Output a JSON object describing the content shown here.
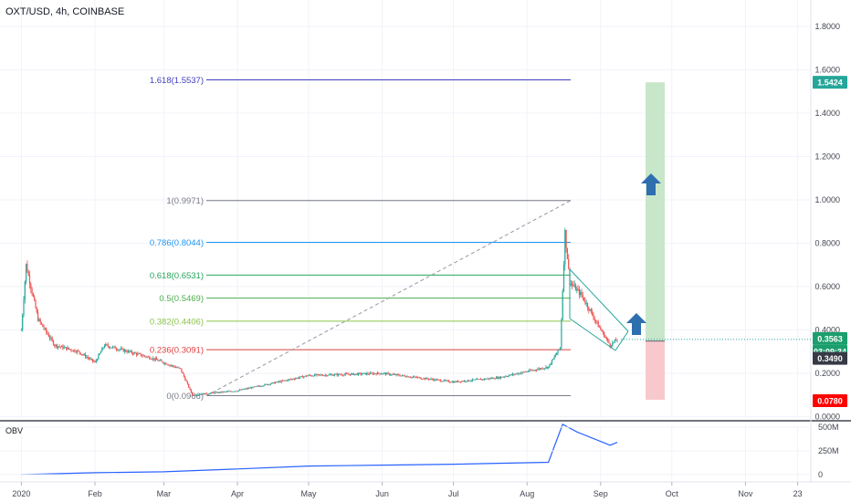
{
  "header": {
    "symbol_title": "OXT/USD, 4h, COINBASE"
  },
  "colors": {
    "up_candle": "#26a69a",
    "down_candle": "#ef5350",
    "obv_line": "#2962ff",
    "trend_line": "#26a69a",
    "target_zone": "#c8e6c9",
    "stop_zone": "#f8c9cc",
    "arrow": "#2e6fb0",
    "badge_green": "#26a69a",
    "badge_dark": "#363a45",
    "badge_red": "#ff0000",
    "badge_price": "#1c9e6e"
  },
  "icons": {
    "target_arrow": "arrow-up-icon",
    "breakout_arrow": "arrow-up-icon"
  },
  "price_axis": {
    "ticks": [
      "1.8000",
      "1.6000",
      "1.4000",
      "1.2000",
      "1.0000",
      "0.8000",
      "0.6000",
      "0.4000",
      "0.2000",
      "0.0000"
    ],
    "badges": {
      "target": "1.5424",
      "last_price": "0.3563",
      "countdown": "03:09:34",
      "entry": "0.3490",
      "stop": "0.0780"
    }
  },
  "obv_axis": {
    "title": "OBV",
    "ticks": [
      "500M",
      "250M",
      "0"
    ]
  },
  "time_axis": {
    "ticks": [
      "2020",
      "Feb",
      "Mar",
      "Apr",
      "May",
      "Jun",
      "Jul",
      "Aug",
      "Sep",
      "Oct",
      "Nov",
      "23"
    ]
  },
  "chart_data": {
    "type": "candlestick",
    "title": "OXT/USD, 4h, COINBASE",
    "ylim": [
      0,
      1.9
    ],
    "y_scale": "linear",
    "fibonacci": [
      {
        "label": "1.618(1.5537)",
        "level": 1.618,
        "price": 1.5537,
        "color": "#3f3fbf"
      },
      {
        "label": "1(0.9971)",
        "level": 1,
        "price": 0.9971,
        "color": "#787b86"
      },
      {
        "label": "0.786(0.8044)",
        "level": 0.786,
        "price": 0.8044,
        "color": "#2196f3"
      },
      {
        "label": "0.618(0.6531)",
        "level": 0.618,
        "price": 0.6531,
        "color": "#26a65b"
      },
      {
        "label": "0.5(0.5469)",
        "level": 0.5,
        "price": 0.5469,
        "color": "#4caf50"
      },
      {
        "label": "0.382(0.4406)",
        "level": 0.382,
        "price": 0.4406,
        "color": "#8bc34a"
      },
      {
        "label": "0.236(0.3091)",
        "level": 0.236,
        "price": 0.3091,
        "color": "#e04040"
      },
      {
        "label": "0(0.0966)",
        "level": 0,
        "price": 0.0966,
        "color": "#787b86"
      }
    ],
    "price_path_approx": [
      {
        "date": "2020-01-01",
        "price": 0.4
      },
      {
        "date": "2020-01-03",
        "price": 0.7
      },
      {
        "date": "2020-01-08",
        "price": 0.45
      },
      {
        "date": "2020-01-15",
        "price": 0.33
      },
      {
        "date": "2020-01-25",
        "price": 0.3
      },
      {
        "date": "2020-02-01",
        "price": 0.25
      },
      {
        "date": "2020-02-05",
        "price": 0.33
      },
      {
        "date": "2020-02-15",
        "price": 0.3
      },
      {
        "date": "2020-02-25",
        "price": 0.27
      },
      {
        "date": "2020-03-08",
        "price": 0.22
      },
      {
        "date": "2020-03-13",
        "price": 0.1
      },
      {
        "date": "2020-04-01",
        "price": 0.12
      },
      {
        "date": "2020-05-01",
        "price": 0.19
      },
      {
        "date": "2020-06-01",
        "price": 0.2
      },
      {
        "date": "2020-07-01",
        "price": 0.16
      },
      {
        "date": "2020-07-20",
        "price": 0.18
      },
      {
        "date": "2020-08-10",
        "price": 0.23
      },
      {
        "date": "2020-08-15",
        "price": 0.32
      },
      {
        "date": "2020-08-17",
        "price": 0.85
      },
      {
        "date": "2020-08-19",
        "price": 0.62
      },
      {
        "date": "2020-08-24",
        "price": 0.56
      },
      {
        "date": "2020-08-31",
        "price": 0.42
      },
      {
        "date": "2020-09-05",
        "price": 0.33
      },
      {
        "date": "2020-09-08",
        "price": 0.356
      }
    ],
    "obv_path_approx": [
      {
        "date": "2020-01-01",
        "value": 0
      },
      {
        "date": "2020-02-01",
        "value": 20000000
      },
      {
        "date": "2020-03-01",
        "value": 30000000
      },
      {
        "date": "2020-04-01",
        "value": 60000000
      },
      {
        "date": "2020-05-01",
        "value": 90000000
      },
      {
        "date": "2020-06-01",
        "value": 100000000
      },
      {
        "date": "2020-07-01",
        "value": 110000000
      },
      {
        "date": "2020-08-10",
        "value": 130000000
      },
      {
        "date": "2020-08-16",
        "value": 530000000
      },
      {
        "date": "2020-08-22",
        "value": 450000000
      },
      {
        "date": "2020-09-05",
        "value": 310000000
      },
      {
        "date": "2020-09-08",
        "value": 340000000
      }
    ],
    "long_position": {
      "entry": 0.349,
      "target": 1.5424,
      "stop": 0.078
    },
    "obv_ylim": [
      0,
      600000000
    ]
  }
}
